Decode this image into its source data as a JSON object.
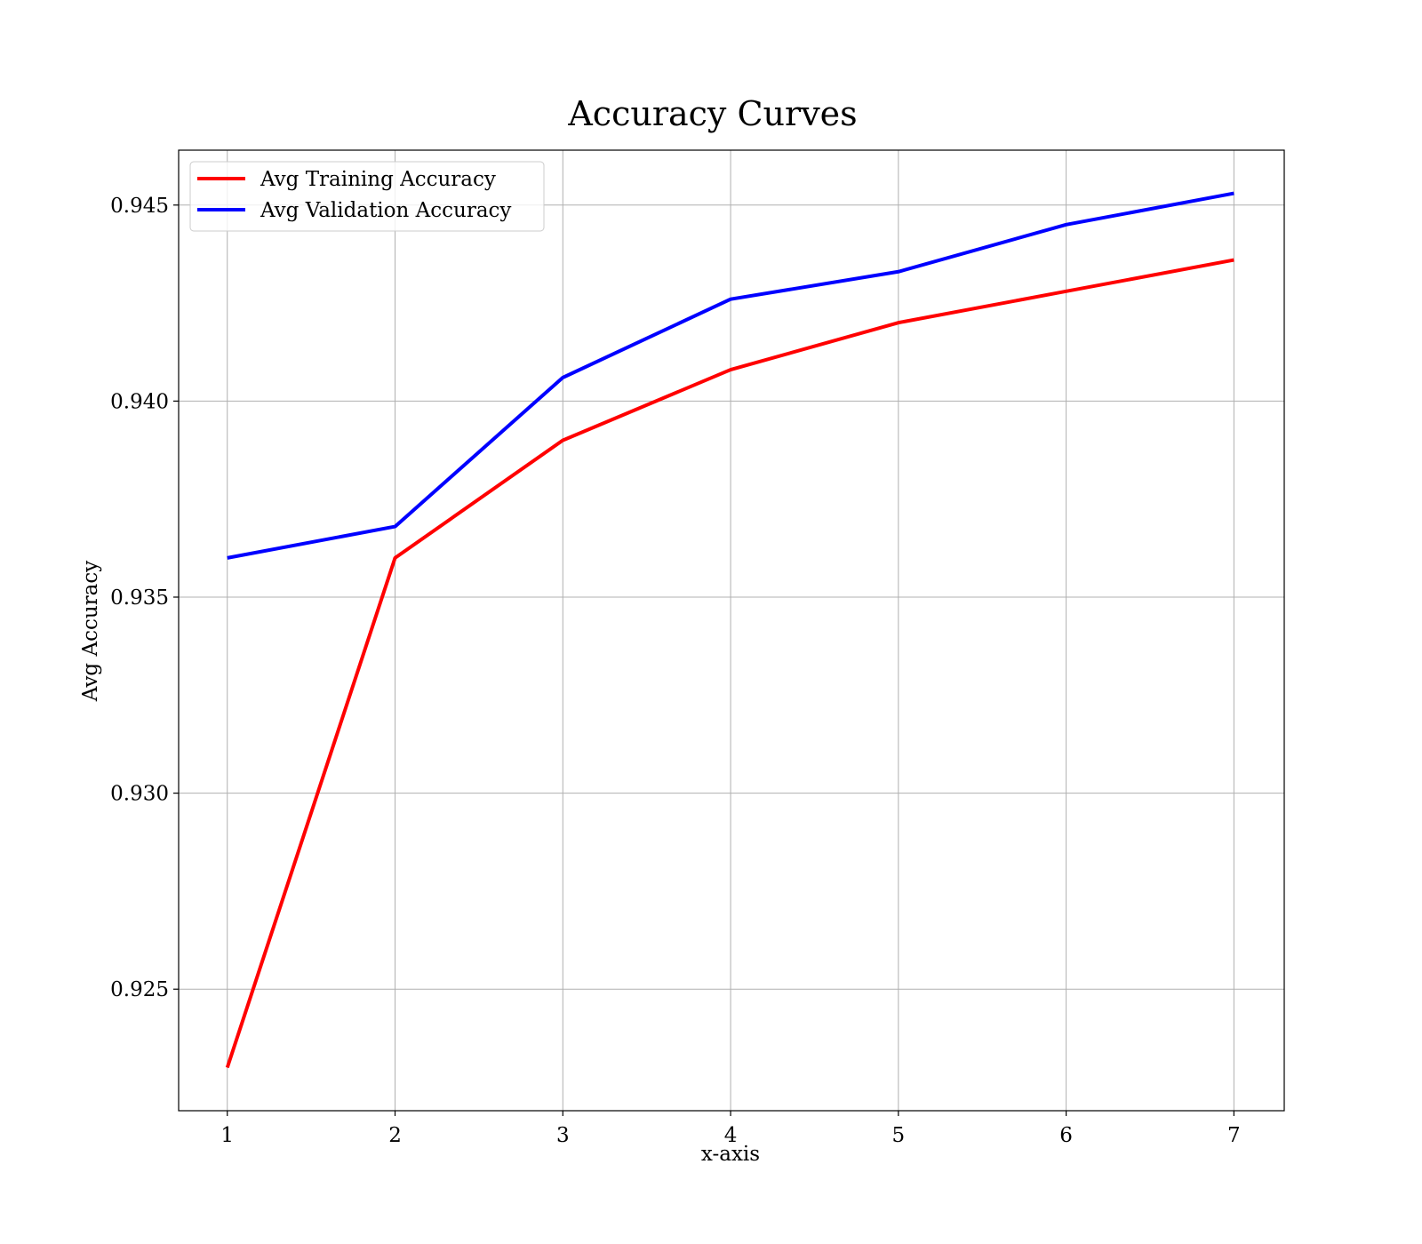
{
  "chart_data": {
    "type": "line",
    "title": "Accuracy Curves",
    "xlabel": "x-axis",
    "ylabel": "Avg Accuracy",
    "x": [
      1,
      2,
      3,
      4,
      5,
      6,
      7
    ],
    "xticks": [
      "1",
      "2",
      "3",
      "4",
      "5",
      "6",
      "7"
    ],
    "yticks": [
      "0.925",
      "0.930",
      "0.935",
      "0.940",
      "0.945"
    ],
    "xlim": [
      0.71,
      7.3
    ],
    "ylim": [
      0.9219,
      0.9464
    ],
    "grid": true,
    "legend_position": "top-left",
    "series": [
      {
        "name": "Avg Training Accuracy",
        "color": "#ff0000",
        "values": [
          0.923,
          0.936,
          0.939,
          0.9408,
          0.942,
          0.9428,
          0.9436
        ]
      },
      {
        "name": "Avg Validation Accuracy",
        "color": "#0000ff",
        "values": [
          0.936,
          0.9368,
          0.9406,
          0.9426,
          0.9433,
          0.9445,
          0.9453
        ]
      }
    ]
  }
}
